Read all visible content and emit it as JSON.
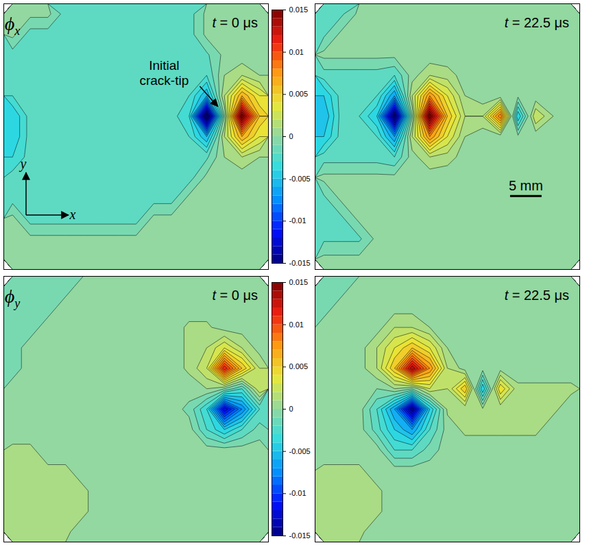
{
  "chart_data": [
    {
      "type": "contour",
      "label": "ϕx",
      "time_label": "t = 0 μs",
      "xlim": [
        0,
        42
      ],
      "ylim": [
        0,
        40
      ],
      "tick_labels": false,
      "colorbar": {
        "range": [
          -0.015,
          0.015
        ],
        "ticks": [
          -0.015,
          -0.01,
          -0.005,
          0,
          0.005,
          0.01,
          0.015
        ]
      },
      "annotations": [
        {
          "text": "Initial\ncrack-tip",
          "x": 25.5,
          "y": 30,
          "arrow_to": [
            34,
            24.5
          ]
        }
      ],
      "axes_arrows": [
        "x",
        "y"
      ],
      "cells": [
        [
          0.0003,
          0.0003,
          0.0003,
          -0.0015,
          -0.0015,
          -0.0015,
          -0.0015,
          -0.0015,
          -0.0015,
          -0.0015,
          -0.0015,
          0.0003,
          0.0003,
          0.0003,
          0.0003
        ],
        [
          0.0003,
          -0.0015,
          -0.0015,
          -0.0015,
          -0.0015,
          -0.0015,
          -0.0015,
          -0.0015,
          -0.0015,
          -0.0015,
          -0.0015,
          0.0003,
          0.0003,
          0.0003,
          0.0003
        ],
        [
          -0.0015,
          -0.0015,
          -0.0015,
          -0.0015,
          -0.0015,
          -0.0015,
          -0.0015,
          -0.0015,
          -0.0015,
          -0.0015,
          -0.0015,
          -0.0012,
          0.0003,
          0.0003,
          0.0003
        ],
        [
          -0.0015,
          -0.0015,
          -0.0015,
          -0.0015,
          -0.0015,
          -0.0015,
          -0.0015,
          -0.0015,
          -0.0015,
          -0.0015,
          -0.0015,
          -0.002,
          0.001,
          0.002,
          0.001
        ],
        [
          -0.002,
          -0.0015,
          -0.0015,
          -0.0015,
          -0.0015,
          -0.0015,
          -0.0015,
          -0.0015,
          -0.0015,
          -0.0015,
          -0.002,
          -0.005,
          0.002,
          0.007,
          0.004
        ],
        [
          -0.004,
          -0.0015,
          -0.0015,
          -0.0015,
          -0.0015,
          -0.0015,
          -0.0015,
          -0.0015,
          -0.0015,
          -0.0015,
          -0.003,
          -0.016,
          0,
          0.016,
          0.006
        ],
        [
          -0.004,
          -0.0015,
          -0.0015,
          -0.0015,
          -0.0015,
          -0.0015,
          -0.0015,
          -0.0015,
          -0.0015,
          -0.0015,
          -0.002,
          -0.005,
          0.002,
          0.007,
          0.004
        ],
        [
          -0.003,
          -0.0015,
          -0.0015,
          -0.0015,
          -0.0015,
          -0.0015,
          -0.0015,
          -0.0015,
          -0.0015,
          -0.0015,
          -0.0015,
          -0.0012,
          0.001,
          0.002,
          0.001
        ],
        [
          -0.0015,
          -0.0015,
          -0.0015,
          -0.0015,
          -0.0015,
          -0.0015,
          -0.0015,
          -0.0015,
          -0.0015,
          -0.0015,
          -0.0015,
          0.0003,
          0.0003,
          0.0003,
          0.0003
        ],
        [
          -0.0015,
          -0.0015,
          -0.0015,
          -0.0015,
          -0.0015,
          -0.0015,
          -0.0015,
          -0.0015,
          -0.0015,
          -0.0015,
          0.0003,
          0.0003,
          0.0003,
          0.0003,
          0.0003
        ],
        [
          0.0003,
          -0.0015,
          -0.0015,
          -0.0015,
          -0.0015,
          -0.0015,
          -0.0015,
          -0.0015,
          0.0003,
          0.0003,
          0.0003,
          0.0003,
          0.0003,
          0.0003,
          0.0003
        ],
        [
          0.0003,
          0.0003,
          0.0003,
          0.0003,
          0.0003,
          0.0003,
          0.0003,
          0.0003,
          0.0003,
          0.0003,
          0.0003,
          0.0003,
          0.0003,
          0.0003,
          0.0003
        ],
        [
          0.0003,
          0.0003,
          0.0003,
          0.0003,
          0.0003,
          0.0003,
          0.0003,
          0.0003,
          0.0003,
          0.0003,
          0.0003,
          0.0003,
          0.0003,
          0.0003,
          0.0003
        ]
      ]
    },
    {
      "type": "contour",
      "time_label": "t = 22.5 μs",
      "xlim": [
        0,
        42
      ],
      "ylim": [
        0,
        40
      ],
      "tick_labels": false,
      "scale_bar": {
        "length": 5,
        "label": "5 mm",
        "x": 31,
        "y": 11
      },
      "cells": [
        [
          -0.0012,
          -0.0012,
          0.0003,
          0.0003,
          0.0003,
          0.0003,
          0.0003,
          0.0003,
          0.0003,
          0.0003,
          0.0003,
          0.0003,
          0.0003,
          0.0003,
          0.0003
        ],
        [
          -0.0012,
          0.0003,
          0.0003,
          0.0003,
          0.0003,
          0.0003,
          0.0003,
          0.0003,
          0.0003,
          0.0003,
          0.0003,
          0.0003,
          0.0003,
          0.0003,
          0.0003
        ],
        [
          0.0003,
          0.0003,
          0.0003,
          0.0003,
          0.0003,
          0.0003,
          0.0003,
          0.0003,
          0.0003,
          0.0003,
          0.0003,
          0.0003,
          0.0003,
          0.0003,
          0.0003
        ],
        [
          -0.0015,
          -0.0015,
          -0.0015,
          -0.0015,
          -0.002,
          0.0005,
          0.002,
          0.0015,
          0.0005,
          0.0003,
          0.0003,
          0.0003,
          0.0003,
          0.0003,
          0.0003
        ],
        [
          -0.004,
          -0.0015,
          -0.0015,
          -0.002,
          -0.006,
          0.002,
          0.008,
          0.004,
          0.001,
          0.0003,
          0.0003,
          0.0003,
          0.0003,
          0.0003,
          0.0003
        ],
        [
          -0.005,
          -0.0015,
          -0.002,
          -0.004,
          -0.015,
          0,
          0.016,
          0.006,
          0.002,
          0.002,
          0.009,
          -0.004,
          0.003,
          0.001,
          0.0003
        ],
        [
          -0.004,
          -0.0015,
          -0.0015,
          -0.002,
          -0.006,
          0.002,
          0.008,
          0.004,
          0.001,
          0.0003,
          0.0003,
          0.0003,
          0.0003,
          0.0003,
          0.0003
        ],
        [
          -0.0015,
          -0.0015,
          -0.0015,
          -0.0015,
          -0.002,
          0.0005,
          0.002,
          0.0015,
          0.0005,
          0.0003,
          0.0003,
          0.0003,
          0.0003,
          0.0003,
          0.0003
        ],
        [
          0.0003,
          0.0003,
          0.0003,
          0.0003,
          0.0003,
          0.0003,
          0.0003,
          0.0003,
          0.0003,
          0.0003,
          0.0003,
          0.0003,
          0.0003,
          0.0003,
          0.0003
        ],
        [
          -0.0012,
          0.0003,
          0.0003,
          0.0003,
          0.0003,
          0.0003,
          0.0003,
          0.0003,
          0.0003,
          0.0003,
          0.0003,
          0.0003,
          0.0003,
          0.0003,
          0.0003
        ],
        [
          -0.0012,
          -0.0012,
          0.0003,
          0.0003,
          0.0003,
          0.0003,
          0.0003,
          0.0003,
          0.0003,
          0.0003,
          0.0003,
          0.0003,
          0.0003,
          0.0003,
          0.0003
        ],
        [
          -0.0012,
          -0.0012,
          -0.0012,
          0.0003,
          0.0003,
          0.0003,
          0.0003,
          0.0003,
          0.0003,
          0.0003,
          0.0003,
          0.0003,
          0.0003,
          0.0003,
          0.0003
        ],
        [
          0.0003,
          0.0003,
          0.0003,
          0.0003,
          0.0003,
          0.0003,
          0.0003,
          0.0003,
          0.0003,
          0.0003,
          0.0003,
          0.0003,
          0.0003,
          0.0003,
          0.0003
        ]
      ]
    },
    {
      "type": "contour",
      "label": "ϕy",
      "time_label": "t = 0 μs",
      "xlim": [
        0,
        42
      ],
      "ylim": [
        0,
        40
      ],
      "tick_labels": false,
      "colorbar": {
        "range": [
          -0.015,
          0.015
        ],
        "ticks": [
          -0.015,
          -0.01,
          -0.005,
          0,
          0.005,
          0.01,
          0.015
        ]
      },
      "cells": [
        [
          -0.0005,
          -0.0005,
          -0.0005,
          -0.0005,
          0.0005,
          0.0005,
          0.0005,
          0.0005,
          0.0005,
          0.0005,
          0.0005,
          0.0005,
          0.0005,
          0.0005,
          0.0005
        ],
        [
          -0.0005,
          -0.0005,
          -0.0005,
          0.0005,
          0.0005,
          0.0005,
          0.0005,
          0.0005,
          0.0005,
          0.0005,
          0.0005,
          0.0005,
          0.0005,
          0.0005,
          0.0005
        ],
        [
          -0.0005,
          -0.0005,
          0.0005,
          0.0005,
          0.0005,
          0.0005,
          0.0005,
          0.0005,
          0.0005,
          0.0005,
          0.0012,
          0.0012,
          0.0005,
          0.0005,
          0.0005
        ],
        [
          -0.0005,
          0.0005,
          0.0005,
          0.0005,
          0.0005,
          0.0005,
          0.0005,
          0.0005,
          0.0005,
          0.0005,
          0.0012,
          0.002,
          0.004,
          0.002,
          0.0005
        ],
        [
          -0.0005,
          0.0005,
          0.0005,
          0.0005,
          0.0005,
          0.0005,
          0.0005,
          0.0005,
          0.0005,
          0.0005,
          0.0012,
          0.003,
          0.012,
          0.006,
          0.002
        ],
        [
          0.0005,
          0.0005,
          0.0005,
          0.0005,
          0.0005,
          0.0005,
          0.0005,
          0.0005,
          0.0005,
          0.0005,
          0.0005,
          0.001,
          0,
          -0.002,
          0.003
        ],
        [
          0.0005,
          0.0005,
          0.0005,
          0.0005,
          0.0005,
          0.0005,
          0.0005,
          0.0005,
          0.0005,
          0.0005,
          -0.0003,
          -0.003,
          -0.012,
          -0.007,
          -0.002
        ],
        [
          0.0005,
          0.0005,
          0.0005,
          0.0005,
          0.0005,
          0.0005,
          0.0005,
          0.0005,
          0.0005,
          0.0005,
          0.0005,
          -0.002,
          -0.004,
          -0.002,
          -0.0005
        ],
        [
          0.0012,
          0.0012,
          0.0005,
          0.0005,
          0.0005,
          0.0005,
          0.0005,
          0.0005,
          0.0005,
          0.0005,
          0.0005,
          0.0005,
          0.0005,
          0.0005,
          0.0005
        ],
        [
          0.0012,
          0.0012,
          0.0012,
          0.0012,
          0.0005,
          0.0005,
          0.0005,
          0.0005,
          0.0005,
          0.0005,
          0.0005,
          0.0005,
          0.0005,
          0.0005,
          0.0005
        ],
        [
          0.0012,
          0.0012,
          0.0012,
          0.0012,
          0.0012,
          0.0005,
          0.0005,
          0.0005,
          0.0005,
          0.0005,
          0.0005,
          0.0005,
          0.0005,
          0.0005,
          0.0005
        ],
        [
          0.0012,
          0.0012,
          0.0012,
          0.0012,
          0.0012,
          0.0005,
          0.0005,
          0.0005,
          0.0005,
          0.0005,
          0.0005,
          0.0005,
          0.0005,
          0.0005,
          0.0005
        ],
        [
          0.0012,
          0.0012,
          0.0012,
          0.0012,
          0.0005,
          0.0005,
          0.0005,
          0.0005,
          0.0005,
          0.0005,
          0.0005,
          0.0005,
          0.0005,
          0.0005,
          0.0005
        ]
      ]
    },
    {
      "type": "contour",
      "time_label": "t = 22.5 μs",
      "xlim": [
        0,
        42
      ],
      "ylim": [
        0,
        40
      ],
      "tick_labels": false,
      "cells": [
        [
          -0.0005,
          -0.0005,
          0.0005,
          0.0005,
          0.0005,
          0.0005,
          0.0005,
          0.0005,
          0.0005,
          0.0005,
          0.0005,
          0.0005,
          0.0005,
          0.0005,
          0.0005
        ],
        [
          -0.0005,
          0.0005,
          0.0005,
          0.0005,
          0.0005,
          0.0005,
          0.0005,
          0.0005,
          0.0005,
          0.0005,
          0.0005,
          0.0005,
          0.0005,
          0.0005,
          0.0005
        ],
        [
          0.0005,
          0.0005,
          0.0005,
          0.0005,
          0.002,
          0.002,
          0.001,
          0.0005,
          0.0005,
          0.0005,
          0.0005,
          0.0005,
          0.0005,
          0.0005,
          0.0005
        ],
        [
          0.0005,
          0.0005,
          0.0005,
          0.002,
          0.004,
          0.006,
          0.004,
          0.001,
          0.0005,
          0.0005,
          0.0005,
          0.0005,
          0.0005,
          0.0005,
          0.0005
        ],
        [
          0.0005,
          0.0005,
          0.0005,
          0.002,
          0.006,
          0.014,
          0.008,
          0.002,
          0.0005,
          0.0005,
          0.0005,
          0.0005,
          0.0005,
          0.0005,
          0.0005
        ],
        [
          0.0005,
          0.0005,
          0.0005,
          0,
          0.001,
          0,
          0.003,
          0.002,
          0.006,
          -0.004,
          0.005,
          0.0012,
          0.0012,
          0.0012,
          0.0012
        ],
        [
          0.0005,
          0.0005,
          0.0005,
          -0.002,
          -0.006,
          -0.014,
          -0.004,
          0.0012,
          0.0012,
          0.0012,
          0.0012,
          0.0012,
          0.0012,
          0.0012,
          0.0005
        ],
        [
          0.0005,
          0.0005,
          0.0005,
          -0.0015,
          -0.004,
          -0.006,
          -0.002,
          0.0005,
          0.0012,
          0.0012,
          0.0012,
          0.0012,
          0.0012,
          0.0005,
          0.0005
        ],
        [
          0.0005,
          0.0005,
          0.0005,
          0.0005,
          -0.002,
          -0.002,
          -0.0005,
          0.0005,
          0.0005,
          0.0005,
          0.0005,
          0.0005,
          0.0005,
          0.0005,
          0.0005
        ],
        [
          0.0012,
          0.0012,
          0.0012,
          0.0005,
          0.0005,
          0.0005,
          0.0005,
          0.0005,
          0.0005,
          0.0005,
          0.0005,
          0.0005,
          0.0005,
          0.0005,
          0.0005
        ],
        [
          0.0012,
          0.0012,
          0.0012,
          0.0012,
          0.0005,
          0.0005,
          0.0005,
          0.0005,
          0.0005,
          0.0005,
          0.0005,
          0.0005,
          0.0005,
          0.0005,
          0.0005
        ],
        [
          0.0012,
          0.0012,
          0.0012,
          0.0012,
          0.0005,
          0.0005,
          0.0005,
          0.0005,
          0.0005,
          0.0005,
          0.0005,
          0.0005,
          0.0005,
          0.0005,
          0.0005
        ],
        [
          0.0012,
          0.0012,
          0.0012,
          0.0005,
          0.0005,
          0.0005,
          0.0005,
          0.0005,
          0.0005,
          0.0005,
          0.0005,
          0.0005,
          0.0005,
          0.0005,
          0.0005
        ]
      ]
    }
  ]
}
